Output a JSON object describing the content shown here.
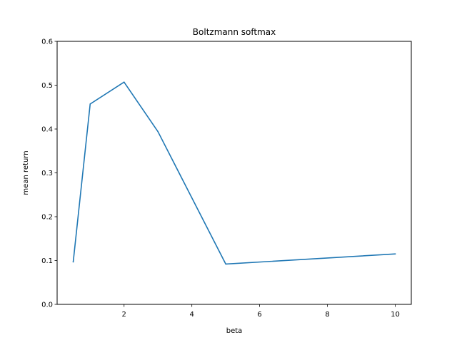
{
  "chart_data": {
    "type": "line",
    "title": "Boltzmann softmax",
    "xlabel": "beta",
    "ylabel": "mean return",
    "xlim": [
      0.025,
      10.475
    ],
    "ylim": [
      0,
      0.6
    ],
    "xticks": [
      2,
      4,
      6,
      8,
      10
    ],
    "yticks": [
      0.0,
      0.1,
      0.2,
      0.3,
      0.4,
      0.5,
      0.6
    ],
    "xtick_labels": [
      "2",
      "4",
      "6",
      "8",
      "10"
    ],
    "ytick_labels": [
      "0.0",
      "0.1",
      "0.2",
      "0.3",
      "0.4",
      "0.5",
      "0.6"
    ],
    "grid": false,
    "legend": "none",
    "series": [
      {
        "color": "#1f77b4",
        "x": [
          0.5,
          1,
          2,
          3,
          5,
          10
        ],
        "y": [
          0.097,
          0.457,
          0.507,
          0.394,
          0.092,
          0.115
        ]
      }
    ]
  }
}
